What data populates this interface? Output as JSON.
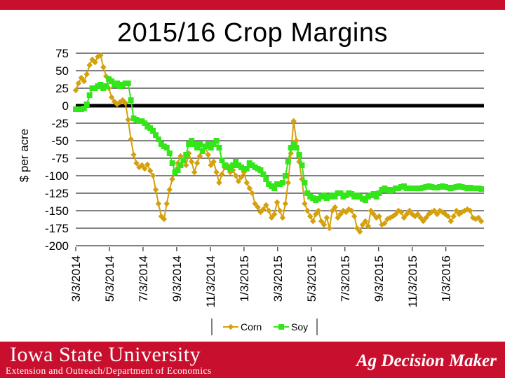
{
  "colors": {
    "corn": "#d4a00c",
    "soy": "#33e61a",
    "zero_line": "#000000",
    "brand_red": "#c8102e"
  },
  "footer": {
    "university": "Iowa State University",
    "subtitle": "Extension and Outreach/Department of Economics",
    "brand": "Ag Decision Maker"
  },
  "chart_data": {
    "type": "line",
    "title": "2015/16 Crop Margins",
    "ylabel": "$ per acre",
    "xlabel": "",
    "ylim": [
      -200,
      75
    ],
    "yticks": [
      "75",
      "50",
      "25",
      "0",
      "-25",
      "-50",
      "-75",
      "-100",
      "-125",
      "-150",
      "-175",
      "-200"
    ],
    "ytick_values": [
      75,
      50,
      25,
      0,
      -25,
      -50,
      -75,
      -100,
      -125,
      -150,
      -175,
      -200
    ],
    "xlim": [
      0,
      1480
    ],
    "xticks": [
      "3/3/2014",
      "5/3/2014",
      "7/3/2014",
      "9/3/2014",
      "11/3/2014",
      "1/3/2015",
      "3/3/2015",
      "5/3/2015",
      "7/3/2015",
      "9/3/2015",
      "11/3/2015",
      "1/3/2016"
    ],
    "xtick_values": [
      0,
      122,
      244,
      366,
      488,
      610,
      732,
      854,
      976,
      1098,
      1220,
      1342
    ],
    "grid": true,
    "legend": "bottom",
    "series": [
      {
        "name": "Corn",
        "x": [
          0,
          10,
          20,
          30,
          40,
          50,
          60,
          70,
          80,
          90,
          100,
          110,
          120,
          130,
          140,
          150,
          160,
          170,
          180,
          190,
          200,
          210,
          220,
          230,
          240,
          250,
          260,
          270,
          280,
          290,
          300,
          310,
          320,
          330,
          340,
          350,
          360,
          370,
          380,
          390,
          400,
          410,
          420,
          430,
          440,
          450,
          460,
          470,
          480,
          490,
          500,
          510,
          520,
          530,
          540,
          550,
          560,
          570,
          580,
          590,
          600,
          610,
          620,
          630,
          640,
          650,
          660,
          670,
          680,
          690,
          700,
          710,
          720,
          730,
          740,
          750,
          760,
          770,
          780,
          790,
          800,
          810,
          820,
          830,
          840,
          850,
          860,
          870,
          880,
          890,
          900,
          910,
          920,
          930,
          940,
          950,
          960,
          970,
          980,
          990,
          1000,
          1010,
          1020,
          1030,
          1040,
          1050,
          1060,
          1070,
          1080,
          1090,
          1100,
          1110,
          1120,
          1130,
          1140,
          1150,
          1160,
          1170,
          1180,
          1190,
          1200,
          1210,
          1220,
          1230,
          1240,
          1250,
          1260,
          1270,
          1280,
          1290,
          1300,
          1310,
          1320,
          1330,
          1340,
          1350,
          1360,
          1370,
          1380,
          1390,
          1400,
          1410,
          1420,
          1430,
          1440,
          1450,
          1460,
          1470
        ],
        "values": [
          22,
          32,
          40,
          35,
          45,
          58,
          66,
          62,
          70,
          72,
          55,
          42,
          25,
          12,
          6,
          2,
          5,
          8,
          4,
          -20,
          -48,
          -70,
          -82,
          -88,
          -85,
          -90,
          -84,
          -93,
          -100,
          -120,
          -140,
          -158,
          -162,
          -140,
          -120,
          -105,
          -95,
          -82,
          -72,
          -78,
          -85,
          -68,
          -80,
          -95,
          -82,
          -72,
          -65,
          -58,
          -70,
          -85,
          -80,
          -95,
          -110,
          -98,
          -88,
          -85,
          -95,
          -92,
          -100,
          -108,
          -102,
          -95,
          -110,
          -118,
          -125,
          -140,
          -145,
          -152,
          -148,
          -142,
          -150,
          -160,
          -155,
          -138,
          -150,
          -160,
          -140,
          -110,
          -68,
          -22,
          -50,
          -80,
          -105,
          -140,
          -150,
          -158,
          -165,
          -155,
          -150,
          -165,
          -170,
          -160,
          -175,
          -150,
          -145,
          -160,
          -155,
          -150,
          -152,
          -148,
          -150,
          -158,
          -175,
          -180,
          -170,
          -165,
          -172,
          -150,
          -155,
          -160,
          -158,
          -170,
          -168,
          -162,
          -160,
          -158,
          -155,
          -150,
          -152,
          -160,
          -155,
          -150,
          -155,
          -158,
          -155,
          -160,
          -165,
          -160,
          -155,
          -152,
          -150,
          -155,
          -150,
          -152,
          -155,
          -158,
          -165,
          -158,
          -150,
          -155,
          -152,
          -150,
          -148,
          -150,
          -160,
          -162,
          -160,
          -165
        ]
      },
      {
        "name": "Soy",
        "x": [
          0,
          10,
          20,
          30,
          40,
          50,
          60,
          70,
          80,
          90,
          100,
          110,
          120,
          130,
          140,
          150,
          160,
          170,
          180,
          190,
          200,
          210,
          220,
          230,
          240,
          250,
          260,
          270,
          280,
          290,
          300,
          310,
          320,
          330,
          340,
          350,
          360,
          370,
          380,
          390,
          400,
          410,
          420,
          430,
          440,
          450,
          460,
          470,
          480,
          490,
          500,
          510,
          520,
          530,
          540,
          550,
          560,
          570,
          580,
          590,
          600,
          610,
          620,
          630,
          640,
          650,
          660,
          670,
          680,
          690,
          700,
          710,
          720,
          730,
          740,
          750,
          760,
          770,
          780,
          790,
          800,
          810,
          820,
          830,
          840,
          850,
          860,
          870,
          880,
          890,
          900,
          910,
          920,
          930,
          940,
          950,
          960,
          970,
          980,
          990,
          1000,
          1010,
          1020,
          1030,
          1040,
          1050,
          1060,
          1070,
          1080,
          1090,
          1100,
          1110,
          1120,
          1130,
          1140,
          1150,
          1160,
          1170,
          1180,
          1190,
          1200,
          1210,
          1220,
          1230,
          1240,
          1250,
          1260,
          1270,
          1280,
          1290,
          1300,
          1310,
          1320,
          1330,
          1340,
          1350,
          1360,
          1370,
          1380,
          1390,
          1400,
          1410,
          1420,
          1430,
          1440,
          1450,
          1460,
          1470
        ],
        "values": [
          -5,
          -5,
          -5,
          -4,
          2,
          15,
          25,
          25,
          28,
          30,
          25,
          28,
          38,
          35,
          30,
          32,
          28,
          30,
          32,
          32,
          8,
          -18,
          -20,
          -22,
          -22,
          -25,
          -30,
          -32,
          -36,
          -42,
          -48,
          -55,
          -58,
          -60,
          -68,
          -82,
          -95,
          -92,
          -85,
          -78,
          -70,
          -55,
          -50,
          -55,
          -60,
          -55,
          -65,
          -58,
          -55,
          -60,
          -55,
          -50,
          -60,
          -78,
          -85,
          -88,
          -90,
          -85,
          -80,
          -85,
          -88,
          -90,
          -90,
          -82,
          -85,
          -88,
          -90,
          -92,
          -98,
          -105,
          -112,
          -115,
          -118,
          -112,
          -112,
          -110,
          -100,
          -80,
          -60,
          -55,
          -60,
          -70,
          -85,
          -110,
          -125,
          -130,
          -132,
          -135,
          -133,
          -130,
          -128,
          -132,
          -130,
          -128,
          -130,
          -125,
          -125,
          -130,
          -128,
          -125,
          -126,
          -130,
          -128,
          -130,
          -133,
          -135,
          -130,
          -128,
          -126,
          -130,
          -125,
          -120,
          -118,
          -120,
          -122,
          -120,
          -118,
          -118,
          -116,
          -115,
          -118,
          -118,
          -118,
          -118,
          -118,
          -118,
          -117,
          -116,
          -115,
          -116,
          -117,
          -117,
          -116,
          -115,
          -116,
          -117,
          -118,
          -117,
          -116,
          -115,
          -116,
          -117,
          -118,
          -117,
          -118,
          -118,
          -118,
          -119
        ]
      }
    ]
  }
}
